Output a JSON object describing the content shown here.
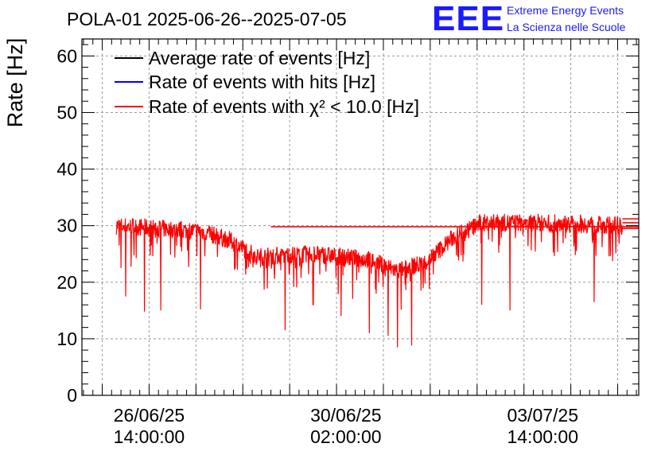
{
  "chart_data": {
    "type": "line",
    "title": "POLA-01 2025-06-26--2025-07-05",
    "ylabel": "Rate [Hz]",
    "xlabel": "",
    "ylim": [
      0,
      63
    ],
    "yticks": [
      0,
      10,
      20,
      30,
      40,
      50,
      60
    ],
    "x_range_days": [
      "2025-06-25T09:20",
      "2025-07-05T07:00"
    ],
    "data_start": "2025-06-26T00:00",
    "data_end": "2025-07-05T00:00",
    "xticks": [
      {
        "x": "2025-06-26T14:00",
        "line1": "26/06/25",
        "line2": "14:00:00"
      },
      {
        "x": "2025-06-30T02:00",
        "line1": "30/06/25",
        "line2": "02:00:00"
      },
      {
        "x": "2025-07-03T14:00",
        "line1": "03/07/25",
        "line2": "14:00:00"
      }
    ],
    "grid": true,
    "legend_position": "top-left",
    "series": [
      {
        "name": "Average rate of events [Hz]",
        "color": "#000000",
        "flat_value": 29.8
      },
      {
        "name": "Rate of events with hits [Hz]",
        "color": "#0000ff",
        "flat_value": 30.5
      },
      {
        "name": "Rate of events with χ² < 10.0 [Hz]",
        "color": "#ff0000",
        "flat_value": 29.5
      }
    ],
    "trend": [
      {
        "x": "2025-06-26T00:00",
        "y": 30.0
      },
      {
        "x": "2025-06-27T12:00",
        "y": 29.0
      },
      {
        "x": "2025-06-28T00:00",
        "y": 27.5
      },
      {
        "x": "2025-06-28T12:00",
        "y": 24.5
      },
      {
        "x": "2025-06-29T12:00",
        "y": 25.0
      },
      {
        "x": "2025-06-30T12:00",
        "y": 24.0
      },
      {
        "x": "2025-07-01T00:00",
        "y": 22.0
      },
      {
        "x": "2025-07-01T12:00",
        "y": 23.5
      },
      {
        "x": "2025-07-02T00:00",
        "y": 28.0
      },
      {
        "x": "2025-07-02T12:00",
        "y": 30.5
      },
      {
        "x": "2025-07-03T12:00",
        "y": 30.5
      },
      {
        "x": "2025-07-05T00:00",
        "y": 30.0
      }
    ],
    "dips": [
      {
        "x": "2025-06-26T02:00",
        "y": 22.5
      },
      {
        "x": "2025-06-26T04:00",
        "y": 17.5
      },
      {
        "x": "2025-06-26T12:00",
        "y": 14.8
      },
      {
        "x": "2025-06-26T19:00",
        "y": 15.0
      },
      {
        "x": "2025-06-27T12:00",
        "y": 15.2
      },
      {
        "x": "2025-06-29T00:00",
        "y": 11.5
      },
      {
        "x": "2025-06-29T12:00",
        "y": 16.0
      },
      {
        "x": "2025-06-30T00:00",
        "y": 14.0
      },
      {
        "x": "2025-06-30T12:00",
        "y": 11.0
      },
      {
        "x": "2025-06-30T20:00",
        "y": 10.5
      },
      {
        "x": "2025-07-01T00:00",
        "y": 8.5
      },
      {
        "x": "2025-07-01T06:00",
        "y": 8.8
      },
      {
        "x": "2025-07-02T12:00",
        "y": 16.0
      },
      {
        "x": "2025-07-03T00:00",
        "y": 15.0
      },
      {
        "x": "2025-07-04T12:00",
        "y": 16.5
      }
    ]
  },
  "logo": {
    "mark": "EEE",
    "line1": "Extreme Energy Events",
    "line2": "La Scienza nelle Scuole"
  }
}
